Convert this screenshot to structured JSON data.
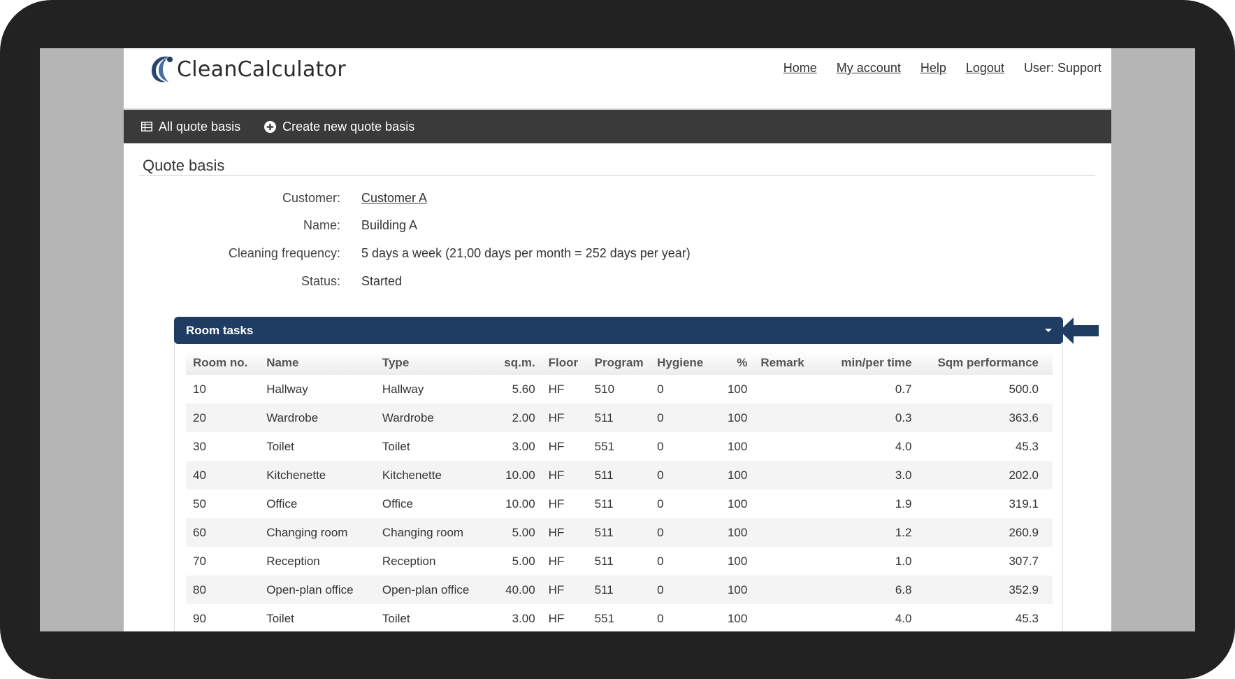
{
  "app": {
    "logo_text": "CleanCalculator"
  },
  "nav": {
    "home": "Home",
    "my_account": "My account",
    "help": "Help",
    "logout": "Logout",
    "user": "User: Support"
  },
  "toolbar": {
    "all_quote_basis": "All quote basis",
    "create_new": "Create new quote basis"
  },
  "section": {
    "title": "Quote basis"
  },
  "info": {
    "customer_label": "Customer:",
    "customer_value": "Customer A",
    "name_label": "Name:",
    "name_value": "Building A",
    "frequency_label": "Cleaning frequency:",
    "frequency_value": "5 days a week (21,00 days per month = 252 days per year)",
    "status_label": "Status:",
    "status_value": "Started"
  },
  "panel": {
    "title": "Room tasks"
  },
  "table": {
    "headers": [
      "Room no.",
      "Name",
      "Type",
      "sq.m.",
      "Floor",
      "Program",
      "Hygiene",
      "%",
      "Remark",
      "min/per time",
      "Sqm performance"
    ],
    "rows": [
      [
        "10",
        "Hallway",
        "Hallway",
        "5.60",
        "HF",
        "510",
        "0",
        "100",
        "",
        "0.7",
        "500.0"
      ],
      [
        "20",
        "Wardrobe",
        "Wardrobe",
        "2.00",
        "HF",
        "511",
        "0",
        "100",
        "",
        "0.3",
        "363.6"
      ],
      [
        "30",
        "Toilet",
        "Toilet",
        "3.00",
        "HF",
        "551",
        "0",
        "100",
        "",
        "4.0",
        "45.3"
      ],
      [
        "40",
        "Kitchenette",
        "Kitchenette",
        "10.00",
        "HF",
        "511",
        "0",
        "100",
        "",
        "3.0",
        "202.0"
      ],
      [
        "50",
        "Office",
        "Office",
        "10.00",
        "HF",
        "511",
        "0",
        "100",
        "",
        "1.9",
        "319.1"
      ],
      [
        "60",
        "Changing room",
        "Changing room",
        "5.00",
        "HF",
        "511",
        "0",
        "100",
        "",
        "1.2",
        "260.9"
      ],
      [
        "70",
        "Reception",
        "Reception",
        "5.00",
        "HF",
        "511",
        "0",
        "100",
        "",
        "1.0",
        "307.7"
      ],
      [
        "80",
        "Open-plan office",
        "Open-plan office",
        "40.00",
        "HF",
        "511",
        "0",
        "100",
        "",
        "6.8",
        "352.9"
      ],
      [
        "90",
        "Toilet",
        "Toilet",
        "3.00",
        "HF",
        "551",
        "0",
        "100",
        "",
        "4.0",
        "45.3"
      ]
    ]
  },
  "colors": {
    "toolbar_bg": "#3a3a3a",
    "panel_header": "#1f3c63",
    "arrow": "#1f3c63"
  }
}
